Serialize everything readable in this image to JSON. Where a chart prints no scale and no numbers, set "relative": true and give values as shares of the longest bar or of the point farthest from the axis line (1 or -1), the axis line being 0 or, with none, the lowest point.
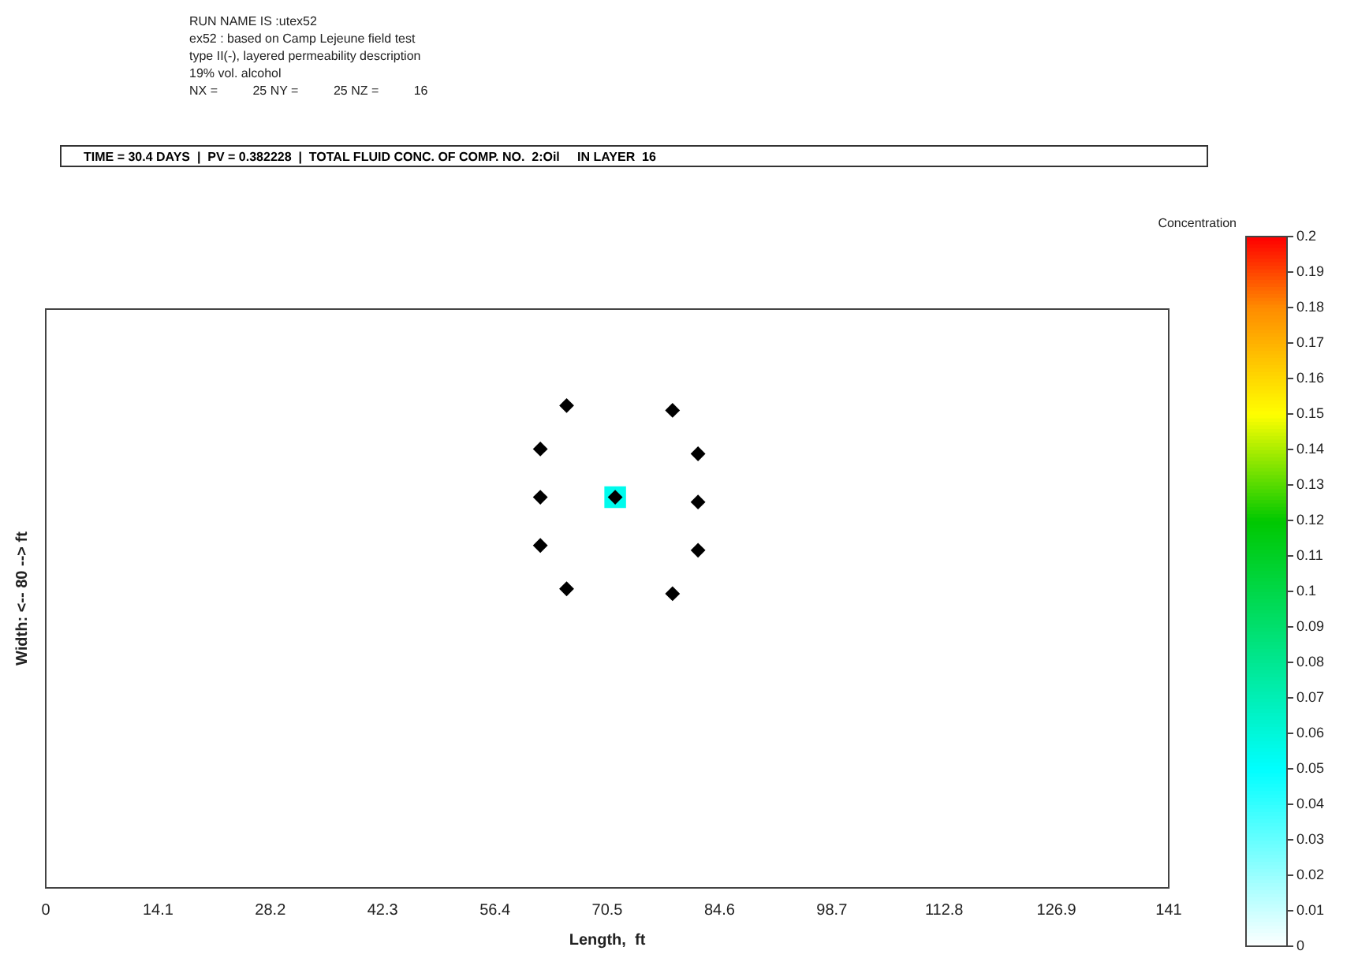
{
  "chart_data": {
    "type": "scatter",
    "title": "TIME = 30.4 DAYS  |  PV = 0.382228  |  TOTAL FLUID CONC. OF COMP. NO.  2:Oil     IN LAYER  16",
    "annotations": [
      "RUN NAME IS :utex52",
      "ex52 : based on Camp Lejeune field test",
      "type II(-), layered permeability description",
      "19% vol. alcohol",
      "NX =          25 NY =          25 NZ =          16"
    ],
    "xlabel": "Length,  ft",
    "ylabel": "Width: <-- 80 --> ft",
    "clabel": "Concentration",
    "xlim": [
      0,
      141
    ],
    "xticks": [
      0,
      14.1,
      28.2,
      42.3,
      56.4,
      70.5,
      84.6,
      98.7,
      112.8,
      126.9,
      141
    ],
    "relative": true,
    "clim": [
      0,
      0.2
    ],
    "cticks": [
      0,
      0.01,
      0.02,
      0.03,
      0.04,
      0.05,
      0.06,
      0.07,
      0.08,
      0.09,
      0.1,
      0.11,
      0.12,
      0.13,
      0.14,
      0.15,
      0.16,
      0.17,
      0.18,
      0.19,
      0.2
    ],
    "grid": false,
    "legend": false,
    "series": [
      {
        "marker": "square",
        "x": [
          71.5
        ],
        "values": [
          0.81
        ],
        "cvalues": [
          0.055
        ]
      },
      {
        "marker": "diamond",
        "color": "#000000",
        "x": [
          65.4,
          78.7,
          62.1,
          81.9,
          62.1,
          81.9,
          62.1,
          81.9,
          65.4,
          78.7,
          71.5
        ],
        "values": [
          1,
          0.99,
          0.91,
          0.9,
          0.81,
          0.8,
          0.71,
          0.7,
          0.62,
          0.61,
          0.81
        ]
      }
    ]
  }
}
